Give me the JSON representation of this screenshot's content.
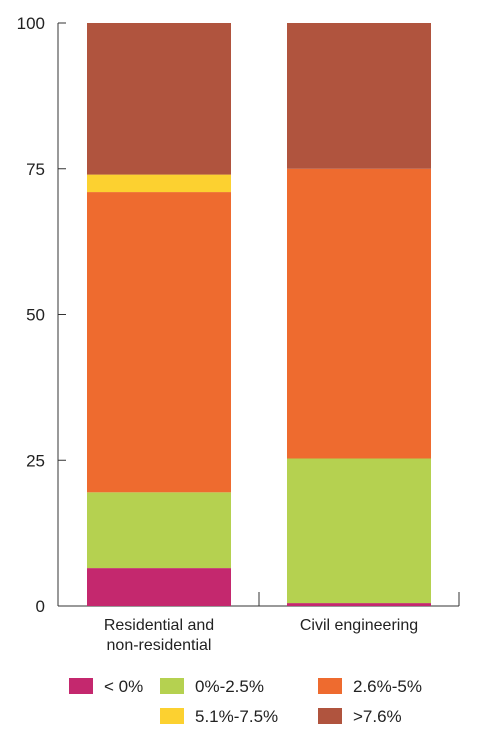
{
  "chart_data": {
    "type": "bar",
    "stacked": true,
    "orientation": "vertical",
    "categories": [
      [
        "Residential and",
        "non-residential"
      ],
      [
        "Civil engineering"
      ]
    ],
    "ylim": [
      0,
      100
    ],
    "yticks": [
      "0",
      "25",
      "50",
      "75",
      "100"
    ],
    "grid": false,
    "legend_position": "bottom",
    "series": [
      {
        "name": "< 0%",
        "color": "#c4286e",
        "values": [
          6.5,
          0.5
        ]
      },
      {
        "name": "0%-2.5%",
        "color": "#b5d150",
        "values": [
          13.0,
          24.8
        ]
      },
      {
        "name": "2.6%-5%",
        "color": "#ee6b2f",
        "values": [
          51.5,
          49.7
        ]
      },
      {
        "name": "5.1%-7.5%",
        "color": "#fcd130",
        "values": [
          3.0,
          0.0
        ]
      },
      {
        "name": ">7.6%",
        "color": "#b0543e",
        "values": [
          26.0,
          25.0
        ]
      }
    ]
  }
}
